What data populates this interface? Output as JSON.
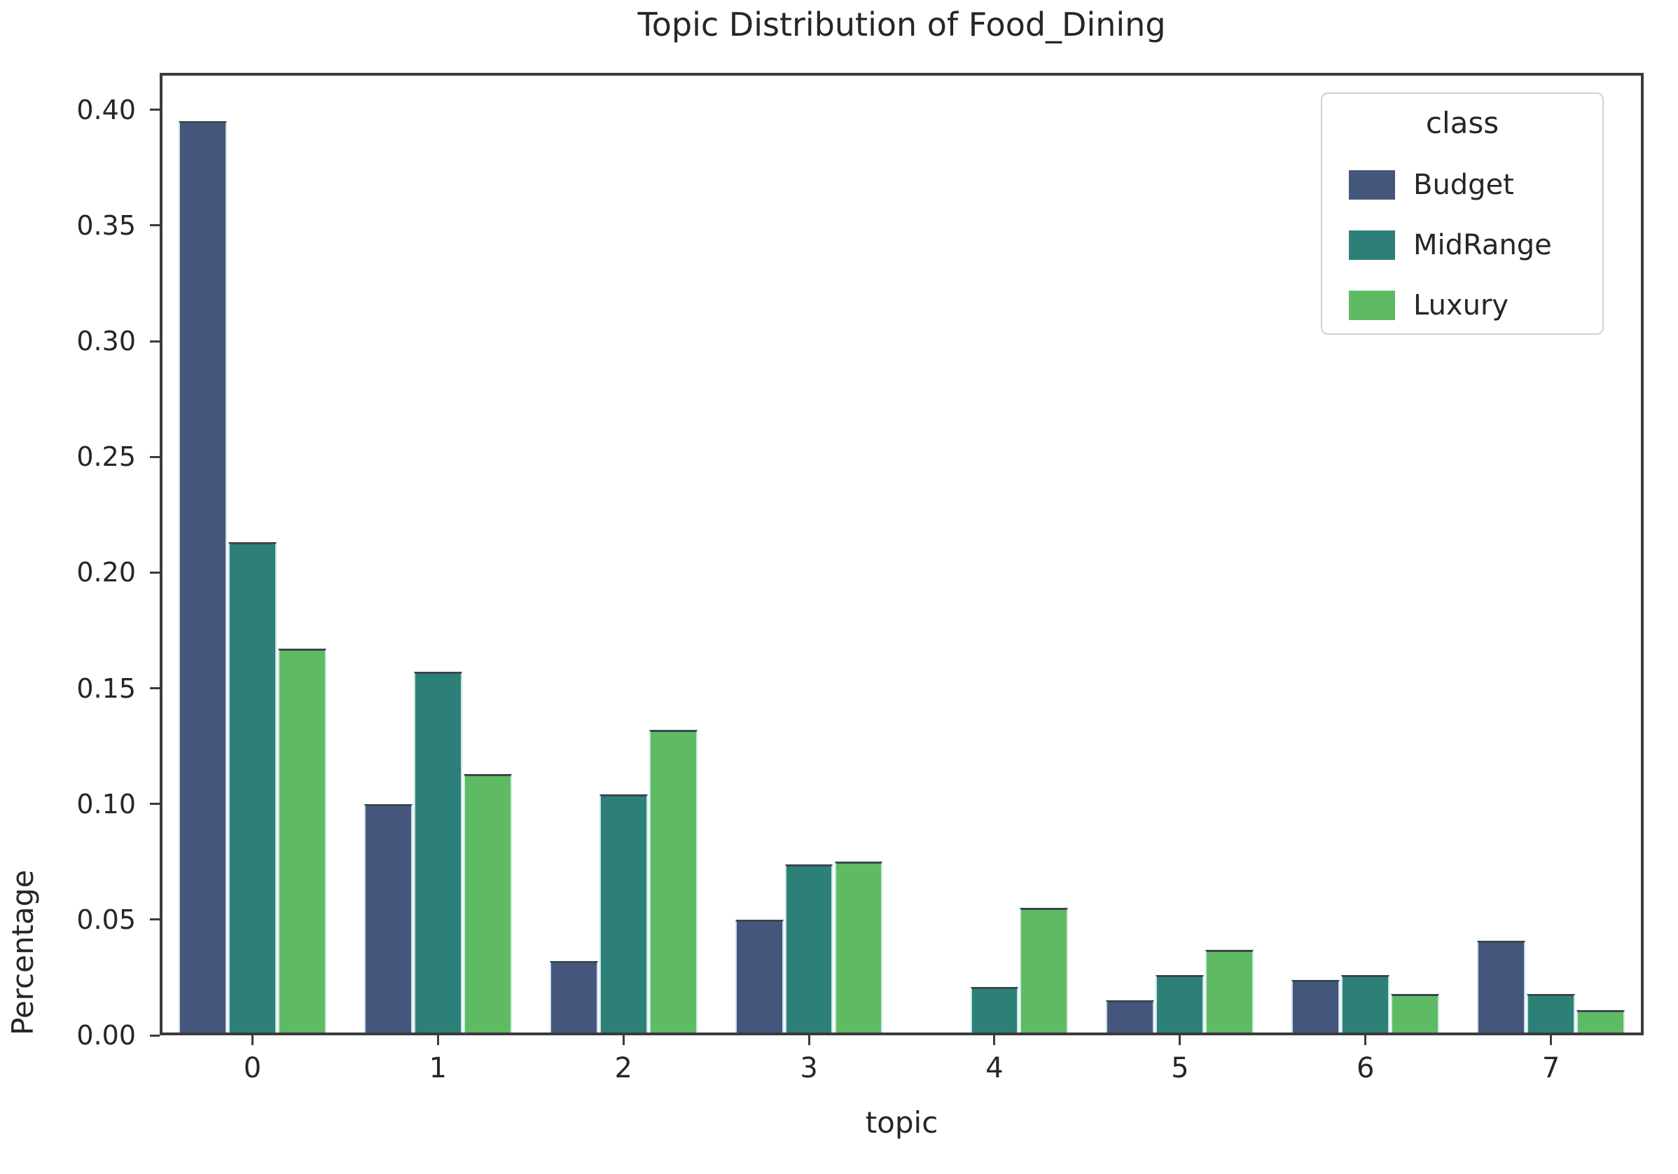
{
  "chart_data": {
    "type": "bar",
    "title": "Topic Distribution of Food_Dining",
    "xlabel": "topic",
    "ylabel": "Percentage",
    "legend_title": "class",
    "legend_position": "upper right",
    "grid": false,
    "categories": [
      "0",
      "1",
      "2",
      "3",
      "4",
      "5",
      "6",
      "7"
    ],
    "series": [
      {
        "name": "Budget",
        "color": "#45567D",
        "values": [
          0.395,
          0.1,
          0.032,
          0.05,
          0.0,
          0.015,
          0.024,
          0.041
        ]
      },
      {
        "name": "MidRange",
        "color": "#2D8077",
        "values": [
          0.213,
          0.157,
          0.104,
          0.074,
          0.021,
          0.026,
          0.026,
          0.018
        ]
      },
      {
        "name": "Luxury",
        "color": "#5FBB63",
        "values": [
          0.167,
          0.113,
          0.132,
          0.075,
          0.055,
          0.037,
          0.018,
          0.011
        ]
      }
    ],
    "ylim": [
      0,
      0.416
    ],
    "yticks": [
      0.0,
      0.05,
      0.1,
      0.15,
      0.2,
      0.25,
      0.3,
      0.35,
      0.4
    ],
    "ytick_labels": [
      "0.00",
      "0.05",
      "0.10",
      "0.15",
      "0.20",
      "0.25",
      "0.30",
      "0.35",
      "0.40"
    ],
    "axis_color": "#3b3b3b",
    "text_color": "#262626"
  }
}
